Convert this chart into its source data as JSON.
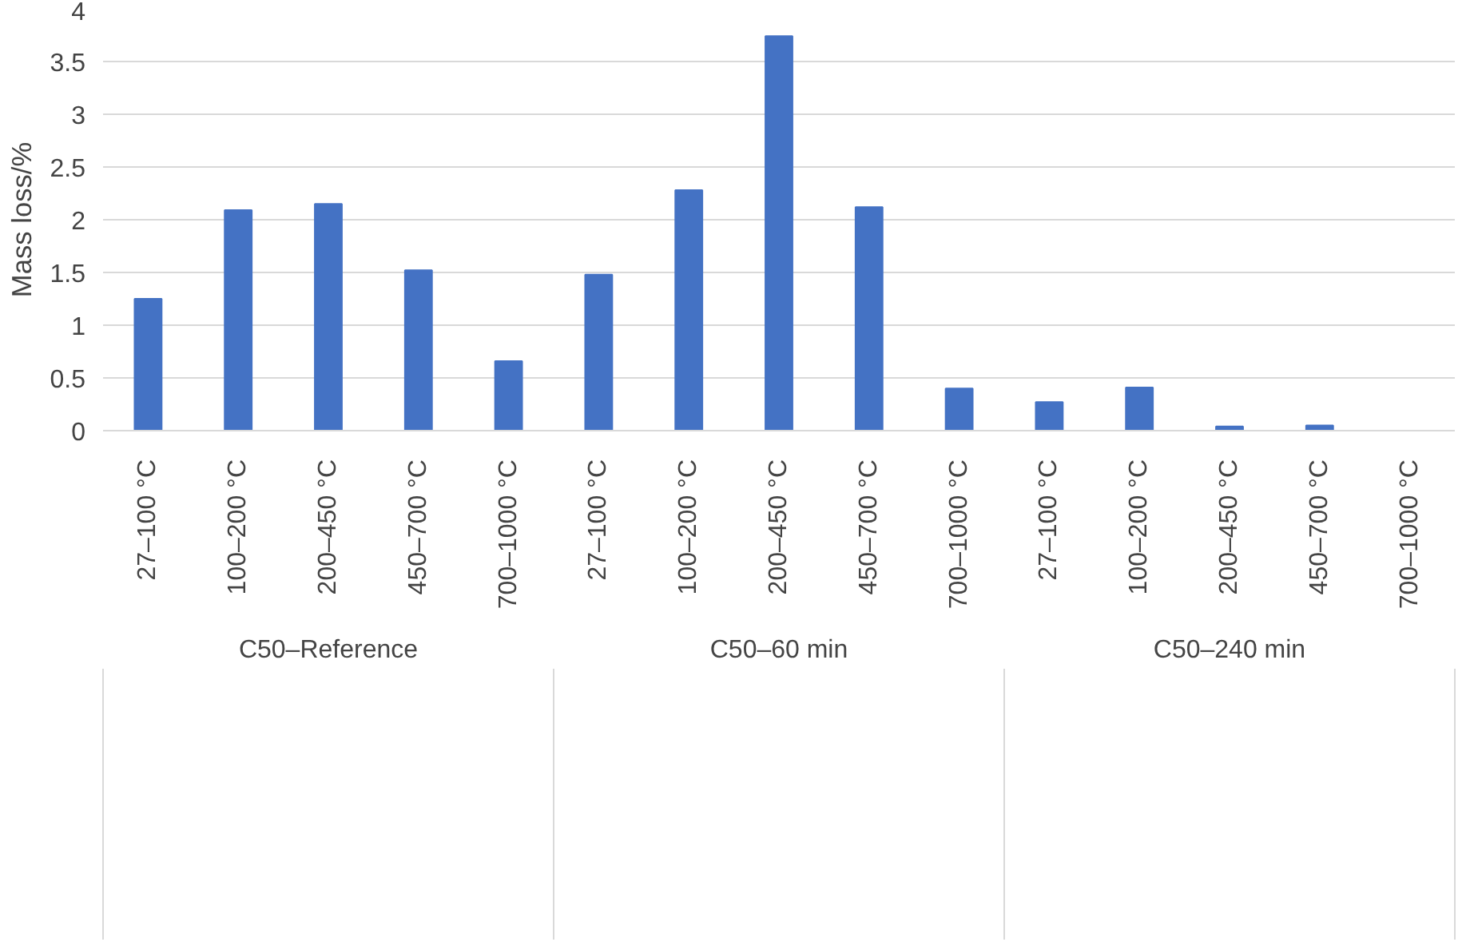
{
  "chart_data": {
    "type": "bar",
    "ylabel": "Mass loss/%",
    "categories": [
      "27–100 °C",
      "100–200 °C",
      "200–450 °C",
      "450–700 °C",
      "700–1000 °C",
      "27–100 °C",
      "100–200 °C",
      "200–450 °C",
      "450–700 °C",
      "700–1000 °C",
      "27–100 °C",
      "100–200 °C",
      "200–450 °C",
      "450–700 °C",
      "700–1000 °C"
    ],
    "values": [
      1.25,
      2.09,
      2.15,
      1.52,
      0.66,
      1.48,
      2.28,
      3.74,
      2.12,
      0.4,
      0.27,
      0.41,
      0.04,
      0.05,
      0
    ],
    "color": "#4472c4",
    "annotations": [
      "C50–Reference",
      "C50–60 min",
      "C50–240 min"
    ],
    "ylim": [
      0,
      4
    ],
    "yticks": [
      0,
      0.5,
      1,
      1.5,
      2,
      2.5,
      3,
      3.5,
      4
    ],
    "grid": "y",
    "legend": false
  }
}
